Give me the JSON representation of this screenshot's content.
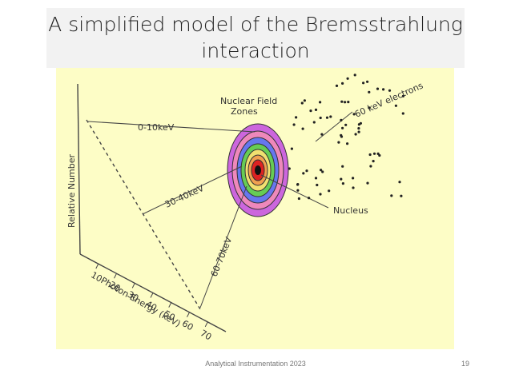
{
  "header": {
    "title_lines": [
      "A simplified model of the Bremsstrahlung",
      "interaction"
    ]
  },
  "diagram": {
    "zones_label": [
      "Nuclear Field",
      "Zones"
    ],
    "electrons_label": "60 keV electrons",
    "nucleus_label": "Nucleus",
    "energy_labels": [
      "0-10keV",
      "30-40keV",
      "60-70keV"
    ],
    "y_axis_label": "Relative Number",
    "x_axis_label": "Photon Energy (keV)",
    "x_ticks": [
      "10",
      "20",
      "30",
      "40",
      "50",
      "60",
      "70"
    ]
  },
  "footer": {
    "text": "Analytical Instrumentation 2023",
    "page": "19"
  }
}
